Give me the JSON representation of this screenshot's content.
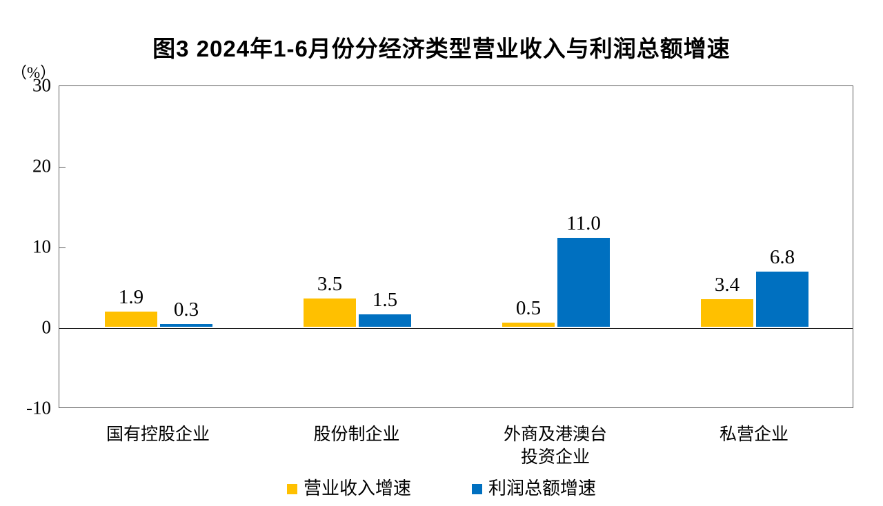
{
  "title": "图3 2024年1-6月份分经济类型营业收入与利润总额增速",
  "y_axis": {
    "unit_label": "（%）",
    "ticks": [
      30,
      20,
      10,
      0,
      -10
    ],
    "min": -10,
    "max": 30
  },
  "legend": {
    "items": [
      {
        "label": "营业收入增速",
        "color": "#FFC000"
      },
      {
        "label": "利润总额增速",
        "color": "#0070C0"
      }
    ]
  },
  "colors": {
    "revenue_bar": "#FFC000",
    "profit_bar": "#0070C0",
    "axis_border": "#595959",
    "zero_line": "#1a1a1a"
  },
  "category_display_lines": [
    [
      "国有控股企业"
    ],
    [
      "股份制企业"
    ],
    [
      "外商及港澳台",
      "投资企业"
    ],
    [
      "私营企业"
    ]
  ],
  "chart_data": {
    "type": "bar",
    "title": "图3 2024年1-6月份分经济类型营业收入与利润总额增速",
    "categories": [
      "国有控股企业",
      "股份制企业",
      "外商及港澳台投资企业",
      "私营企业"
    ],
    "series": [
      {
        "name": "营业收入增速",
        "color": "#FFC000",
        "values": [
          1.9,
          3.5,
          0.5,
          3.4
        ]
      },
      {
        "name": "利润总额增速",
        "color": "#0070C0",
        "values": [
          0.3,
          1.5,
          11.0,
          6.8
        ]
      }
    ],
    "value_labels": [
      [
        "1.9",
        "3.5",
        "0.5",
        "3.4"
      ],
      [
        "0.3",
        "1.5",
        "11.0",
        "6.8"
      ]
    ],
    "xlabel": "",
    "ylabel": "（%）",
    "ylim": [
      -10,
      30
    ],
    "ytick_step": 10,
    "grid": false,
    "legend_position": "bottom"
  }
}
